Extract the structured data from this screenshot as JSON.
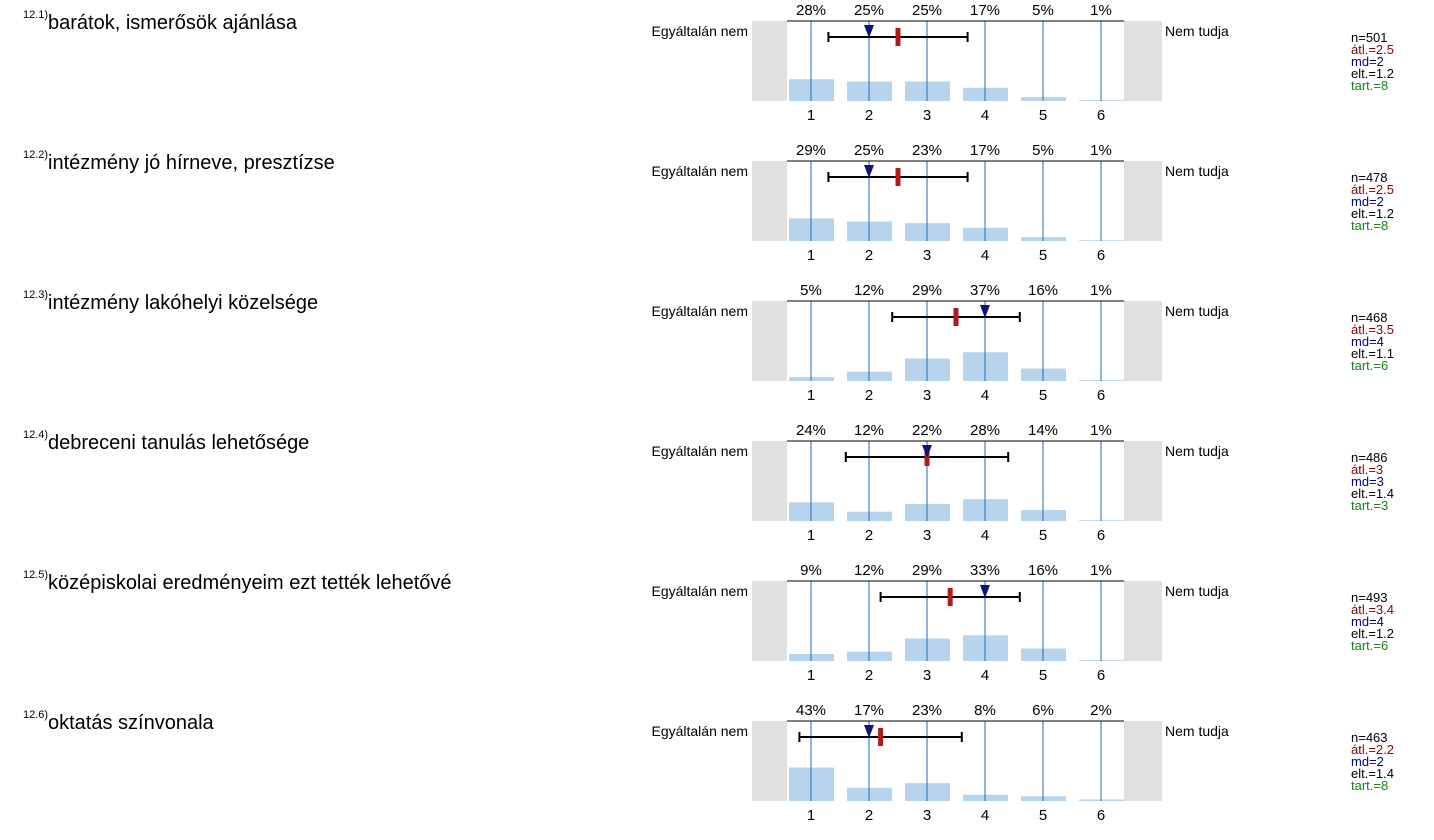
{
  "left_anchor": "Egyáltalán nem",
  "right_anchor": "Nem tudja",
  "colors": {
    "bar": "#b8d4ec",
    "gridline": "#1f6eb5",
    "side_box": "#e0e0e0",
    "error_bar": "#000000",
    "mean_marker": "#b01c1c",
    "median_marker": "#12127a",
    "n": "#000000",
    "mean": "#8b0000",
    "md": "#00008b",
    "sd": "#000000",
    "tart": "#1a7f1a"
  },
  "chart_data": [
    {
      "type": "bar",
      "id": "12.1)",
      "label": "barátok, ismerősök ajánlása",
      "categories": [
        "1",
        "2",
        "3",
        "4",
        "5",
        "6"
      ],
      "values": [
        28,
        25,
        25,
        17,
        5,
        1
      ],
      "value_labels": [
        "28%",
        "25%",
        "25%",
        "17%",
        "5%",
        "1%"
      ],
      "mean": 2.5,
      "median": 2,
      "sd": 1.2,
      "n": 501,
      "stats": {
        "n": "n=501",
        "mean": "átl.=2.5",
        "md": "md=2",
        "sd": "elt.=1.2",
        "tart": "tart.=8"
      }
    },
    {
      "type": "bar",
      "id": "12.2)",
      "label": "intézmény jó hírneve, presztízse",
      "categories": [
        "1",
        "2",
        "3",
        "4",
        "5",
        "6"
      ],
      "values": [
        29,
        25,
        23,
        17,
        5,
        1
      ],
      "value_labels": [
        "29%",
        "25%",
        "23%",
        "17%",
        "5%",
        "1%"
      ],
      "mean": 2.5,
      "median": 2,
      "sd": 1.2,
      "n": 478,
      "stats": {
        "n": "n=478",
        "mean": "átl.=2.5",
        "md": "md=2",
        "sd": "elt.=1.2",
        "tart": "tart.=8"
      }
    },
    {
      "type": "bar",
      "id": "12.3)",
      "label": "intézmény lakóhelyi közelsége",
      "categories": [
        "1",
        "2",
        "3",
        "4",
        "5",
        "6"
      ],
      "values": [
        5,
        12,
        29,
        37,
        16,
        1
      ],
      "value_labels": [
        "5%",
        "12%",
        "29%",
        "37%",
        "16%",
        "1%"
      ],
      "mean": 3.5,
      "median": 4,
      "sd": 1.1,
      "n": 468,
      "stats": {
        "n": "n=468",
        "mean": "átl.=3.5",
        "md": "md=4",
        "sd": "elt.=1.1",
        "tart": "tart.=6"
      }
    },
    {
      "type": "bar",
      "id": "12.4)",
      "label": "debreceni tanulás lehetősége",
      "categories": [
        "1",
        "2",
        "3",
        "4",
        "5",
        "6"
      ],
      "values": [
        24,
        12,
        22,
        28,
        14,
        1
      ],
      "value_labels": [
        "24%",
        "12%",
        "22%",
        "28%",
        "14%",
        "1%"
      ],
      "mean": 3,
      "median": 3,
      "sd": 1.4,
      "n": 486,
      "stats": {
        "n": "n=486",
        "mean": "átl.=3",
        "md": "md=3",
        "sd": "elt.=1.4",
        "tart": "tart.=3"
      }
    },
    {
      "type": "bar",
      "id": "12.5)",
      "label": "középiskolai eredményeim ezt tették lehetővé",
      "categories": [
        "1",
        "2",
        "3",
        "4",
        "5",
        "6"
      ],
      "values": [
        9,
        12,
        29,
        33,
        16,
        1
      ],
      "value_labels": [
        "9%",
        "12%",
        "29%",
        "33%",
        "16%",
        "1%"
      ],
      "mean": 3.4,
      "median": 4,
      "sd": 1.2,
      "n": 493,
      "stats": {
        "n": "n=493",
        "mean": "átl.=3.4",
        "md": "md=4",
        "sd": "elt.=1.2",
        "tart": "tart.=6"
      }
    },
    {
      "type": "bar",
      "id": "12.6)",
      "label": "oktatás színvonala",
      "categories": [
        "1",
        "2",
        "3",
        "4",
        "5",
        "6"
      ],
      "values": [
        43,
        17,
        23,
        8,
        6,
        2
      ],
      "value_labels": [
        "43%",
        "17%",
        "23%",
        "8%",
        "6%",
        "2%"
      ],
      "mean": 2.2,
      "median": 2,
      "sd": 1.4,
      "n": 463,
      "stats": {
        "n": "n=463",
        "mean": "átl.=2.2",
        "md": "md=2",
        "sd": "elt.=1.4",
        "tart": "tart.=8"
      }
    }
  ]
}
